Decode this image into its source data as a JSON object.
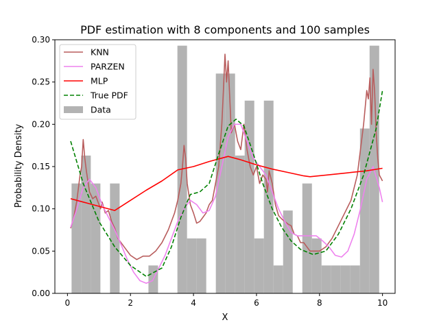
{
  "chart_data": {
    "type": "line",
    "title": "PDF estimation with 8 components and 100 samples",
    "xlabel": "X",
    "ylabel": "Probability Density",
    "xlim": [
      -0.4,
      10.4
    ],
    "ylim": [
      0.0,
      0.3
    ],
    "xticks": [
      0,
      2,
      4,
      6,
      8,
      10
    ],
    "yticks": [
      0.0,
      0.05,
      0.1,
      0.15,
      0.2,
      0.25,
      0.3
    ],
    "grid": false,
    "legend_position": "top-left",
    "histogram": {
      "name": "Data",
      "color": "#b3b3b3",
      "bin_width": 0.305,
      "bins": [
        {
          "x0": 0.13,
          "height": 0.13
        },
        {
          "x0": 0.435,
          "height": 0.163
        },
        {
          "x0": 0.74,
          "height": 0.13
        },
        {
          "x0": 1.35,
          "height": 0.13
        },
        {
          "x0": 2.57,
          "height": 0.033
        },
        {
          "x0": 3.49,
          "height": 0.293
        },
        {
          "x0": 3.795,
          "height": 0.065
        },
        {
          "x0": 4.1,
          "height": 0.065
        },
        {
          "x0": 4.71,
          "height": 0.26
        },
        {
          "x0": 5.015,
          "height": 0.26
        },
        {
          "x0": 5.32,
          "height": 0.163
        },
        {
          "x0": 5.625,
          "height": 0.228
        },
        {
          "x0": 5.93,
          "height": 0.065
        },
        {
          "x0": 6.235,
          "height": 0.228
        },
        {
          "x0": 6.54,
          "height": 0.033
        },
        {
          "x0": 6.845,
          "height": 0.098
        },
        {
          "x0": 7.455,
          "height": 0.13
        },
        {
          "x0": 7.76,
          "height": 0.065
        },
        {
          "x0": 8.065,
          "height": 0.033
        },
        {
          "x0": 8.37,
          "height": 0.033
        },
        {
          "x0": 8.675,
          "height": 0.033
        },
        {
          "x0": 8.98,
          "height": 0.033
        },
        {
          "x0": 9.285,
          "height": 0.195
        },
        {
          "x0": 9.59,
          "height": 0.293
        }
      ]
    },
    "series": [
      {
        "name": "KNN",
        "color": "#b85c5c",
        "dash": "",
        "x": [
          0.1,
          0.2,
          0.3,
          0.4,
          0.45,
          0.5,
          0.55,
          0.6,
          0.7,
          0.8,
          0.9,
          1.0,
          1.05,
          1.1,
          1.2,
          1.3,
          1.4,
          1.5,
          1.6,
          1.8,
          2.0,
          2.2,
          2.4,
          2.6,
          2.8,
          3.0,
          3.2,
          3.4,
          3.5,
          3.6,
          3.65,
          3.7,
          3.75,
          3.8,
          3.9,
          4.0,
          4.1,
          4.2,
          4.3,
          4.4,
          4.5,
          4.6,
          4.7,
          4.8,
          4.9,
          4.95,
          5.0,
          5.05,
          5.1,
          5.2,
          5.3,
          5.4,
          5.5,
          5.6,
          5.7,
          5.8,
          5.9,
          6.0,
          6.1,
          6.2,
          6.3,
          6.35,
          6.4,
          6.5,
          6.6,
          6.7,
          6.8,
          6.9,
          7.0,
          7.1,
          7.2,
          7.3,
          7.4,
          7.5,
          7.6,
          7.7,
          7.8,
          7.9,
          8.0,
          8.2,
          8.4,
          8.6,
          8.8,
          9.0,
          9.2,
          9.3,
          9.4,
          9.5,
          9.55,
          9.6,
          9.65,
          9.7,
          9.75,
          9.8,
          9.85,
          9.9,
          10.0
        ],
        "y": [
          0.077,
          0.09,
          0.11,
          0.14,
          0.15,
          0.182,
          0.16,
          0.145,
          0.12,
          0.112,
          0.115,
          0.105,
          0.1,
          0.108,
          0.095,
          0.098,
          0.085,
          0.077,
          0.065,
          0.055,
          0.045,
          0.04,
          0.044,
          0.044,
          0.05,
          0.06,
          0.075,
          0.095,
          0.11,
          0.13,
          0.15,
          0.175,
          0.16,
          0.13,
          0.105,
          0.095,
          0.083,
          0.085,
          0.09,
          0.095,
          0.105,
          0.11,
          0.13,
          0.15,
          0.2,
          0.24,
          0.283,
          0.25,
          0.275,
          0.19,
          0.2,
          0.18,
          0.17,
          0.2,
          0.17,
          0.15,
          0.14,
          0.15,
          0.13,
          0.14,
          0.135,
          0.12,
          0.145,
          0.13,
          0.105,
          0.092,
          0.088,
          0.085,
          0.082,
          0.08,
          0.07,
          0.068,
          0.06,
          0.06,
          0.055,
          0.05,
          0.05,
          0.05,
          0.05,
          0.055,
          0.065,
          0.08,
          0.095,
          0.11,
          0.14,
          0.17,
          0.2,
          0.24,
          0.23,
          0.255,
          0.2,
          0.265,
          0.24,
          0.19,
          0.16,
          0.14,
          0.133
        ]
      },
      {
        "name": "PARZEN",
        "color": "#ee82ee",
        "dash": "",
        "x": [
          0.1,
          0.3,
          0.5,
          0.7,
          0.9,
          1.1,
          1.3,
          1.5,
          1.7,
          1.9,
          2.1,
          2.3,
          2.5,
          2.7,
          2.9,
          3.1,
          3.3,
          3.5,
          3.7,
          3.9,
          4.1,
          4.3,
          4.5,
          4.7,
          4.9,
          5.1,
          5.3,
          5.5,
          5.7,
          5.9,
          6.1,
          6.3,
          6.5,
          6.7,
          6.9,
          7.1,
          7.3,
          7.5,
          7.7,
          7.9,
          8.1,
          8.3,
          8.5,
          8.7,
          8.9,
          9.1,
          9.3,
          9.5,
          9.7,
          9.9,
          10.0
        ],
        "y": [
          0.078,
          0.1,
          0.125,
          0.135,
          0.125,
          0.105,
          0.09,
          0.075,
          0.058,
          0.04,
          0.025,
          0.015,
          0.012,
          0.015,
          0.03,
          0.045,
          0.065,
          0.085,
          0.1,
          0.11,
          0.105,
          0.095,
          0.098,
          0.115,
          0.15,
          0.185,
          0.2,
          0.2,
          0.18,
          0.16,
          0.15,
          0.14,
          0.12,
          0.1,
          0.085,
          0.072,
          0.068,
          0.068,
          0.068,
          0.068,
          0.062,
          0.055,
          0.045,
          0.043,
          0.05,
          0.07,
          0.1,
          0.135,
          0.15,
          0.125,
          0.108
        ]
      },
      {
        "name": "MLP",
        "color": "#ff0000",
        "dash": "",
        "x": [
          0.1,
          0.5,
          1.0,
          1.5,
          2.0,
          2.5,
          3.0,
          3.5,
          4.0,
          4.5,
          5.1,
          5.5,
          6.0,
          6.5,
          7.0,
          7.5,
          7.7,
          8.5,
          9.0,
          9.5,
          10.0
        ],
        "y": [
          0.112,
          0.108,
          0.103,
          0.098,
          0.11,
          0.122,
          0.133,
          0.146,
          0.15,
          0.156,
          0.162,
          0.158,
          0.152,
          0.147,
          0.143,
          0.139,
          0.138,
          0.141,
          0.143,
          0.145,
          0.148
        ]
      },
      {
        "name": "True PDF",
        "color": "#008000",
        "dash": "6,3",
        "x": [
          0.1,
          0.5,
          1.0,
          1.5,
          2.0,
          2.5,
          3.0,
          3.3,
          3.6,
          3.9,
          4.2,
          4.5,
          4.8,
          5.1,
          5.35,
          5.6,
          5.9,
          6.2,
          6.5,
          6.8,
          7.1,
          7.4,
          7.8,
          8.2,
          8.6,
          9.0,
          9.4,
          9.8,
          10.0
        ],
        "y": [
          0.18,
          0.13,
          0.085,
          0.055,
          0.033,
          0.02,
          0.03,
          0.055,
          0.09,
          0.117,
          0.12,
          0.13,
          0.165,
          0.198,
          0.206,
          0.198,
          0.165,
          0.13,
          0.1,
          0.078,
          0.062,
          0.052,
          0.046,
          0.05,
          0.07,
          0.1,
          0.14,
          0.195,
          0.24
        ]
      }
    ]
  }
}
